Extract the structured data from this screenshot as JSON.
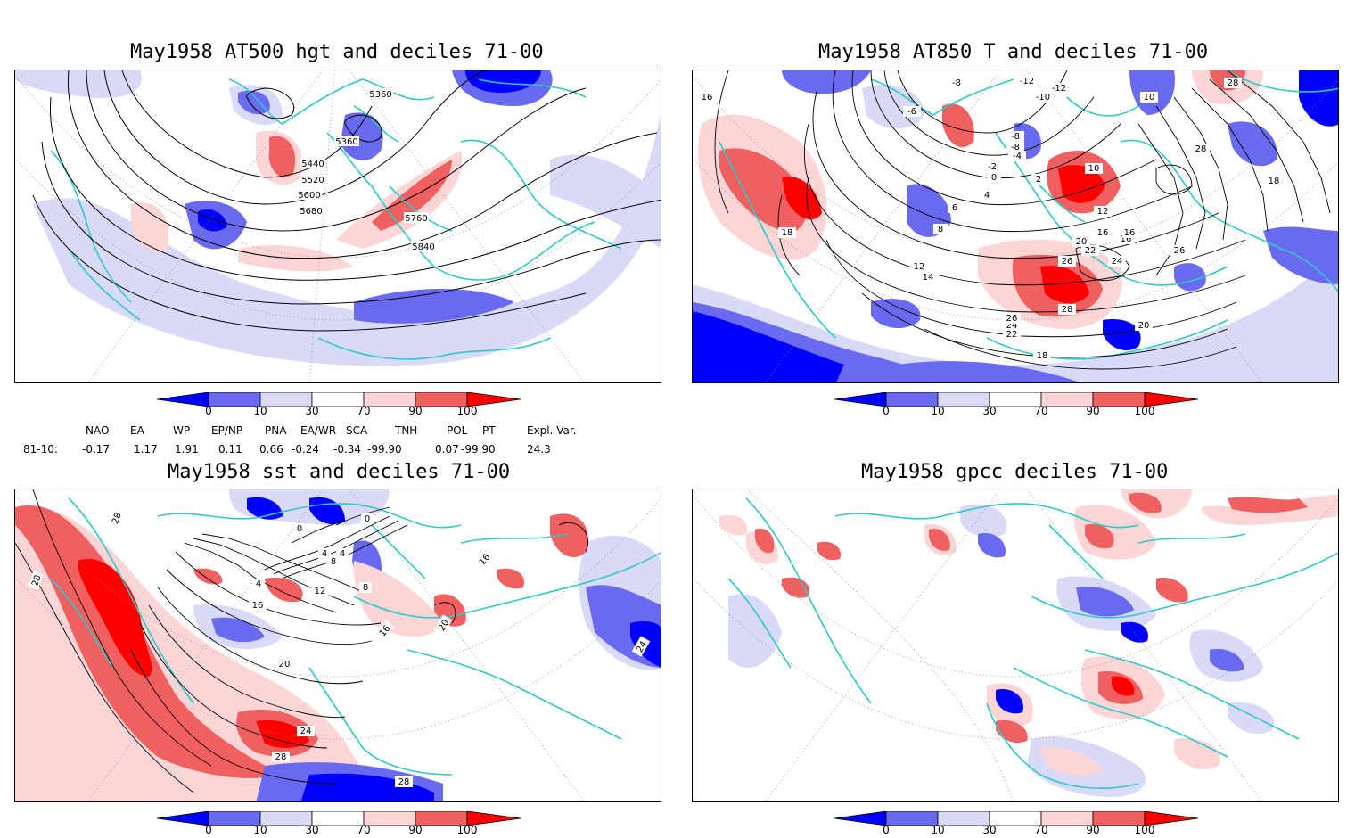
{
  "panels": [
    {
      "title": "May1958 AT500 hgt and deciles 71-00",
      "contour_labels": [
        "5360",
        "5360",
        "5440",
        "5520",
        "5600",
        "5680",
        "5760",
        "5840"
      ]
    },
    {
      "title": "May1958 AT850 T and deciles 71-00",
      "contour_labels": [
        "-12",
        "-12",
        "-10",
        "-8",
        "-6",
        "-8",
        "-8",
        "-4",
        "-2",
        "0",
        "2",
        "4",
        "6",
        "8",
        "10",
        "10",
        "12",
        "12",
        "14",
        "16",
        "16",
        "16",
        "18",
        "18",
        "20",
        "20",
        "22",
        "22",
        "24",
        "24",
        "26",
        "26",
        "26",
        "28",
        "28",
        "28",
        "16",
        "18"
      ]
    },
    {
      "title": "May1958 sst and deciles 71-00",
      "contour_labels": [
        "28",
        "28",
        "0",
        "0",
        "4",
        "8",
        "4",
        "8",
        "4",
        "12",
        "16",
        "16",
        "20",
        "20",
        "24",
        "28",
        "28",
        "24",
        "16"
      ]
    },
    {
      "title": "May1958 gpcc deciles 71-00",
      "contour_labels": []
    }
  ],
  "colorbar": {
    "labels": [
      "0",
      "10",
      "30",
      "70",
      "90",
      "100"
    ],
    "colors": [
      "#0000ff",
      "#6a6af0",
      "#d8daf8",
      "#ffffff",
      "#fcd6d6",
      "#f06060",
      "#ff0000"
    ]
  },
  "teleconnection": {
    "headers": [
      "NAO",
      "EA",
      "WP",
      "EP/NP",
      "PNA",
      "EA/WR",
      "SCA",
      "TNH",
      "POL",
      "PT",
      "Expl. Var."
    ],
    "row_label": "81-10:",
    "values": [
      "-0.17",
      "1.17",
      "1.91",
      "0.11",
      "0.66",
      "-0.24",
      "-0.34",
      "-99.90",
      "0.07",
      "-99.90",
      "24.3"
    ]
  },
  "colors": {
    "coast": "#30c8c8",
    "grid": "#888888",
    "contour": "#000000"
  }
}
